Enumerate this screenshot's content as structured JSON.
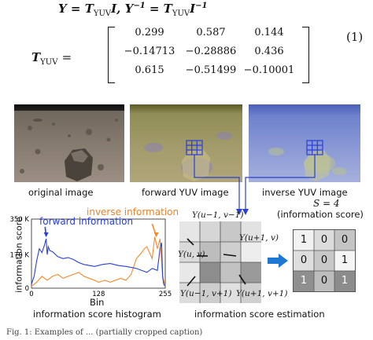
{
  "equation": {
    "line1": "Y = T",
    "line1_sub": "YUV",
    "line1_mid": "I, Y",
    "line1_sup": "−1",
    "line1_rest": " = T",
    "line1_sub2": "YUV",
    "line1_end": "I",
    "line1_sup2": "−1",
    "matrix_label": "T",
    "matrix_label_sub": "YUV",
    "equals": "=",
    "number": "(1)",
    "matrix": [
      [
        "0.299",
        "0.587",
        "0.144"
      ],
      [
        "−0.14713",
        "−0.28886",
        "0.436"
      ],
      [
        "0.615",
        "−0.51499",
        "−0.10001"
      ]
    ]
  },
  "images": {
    "original": "original image",
    "forward": "forward YUV image",
    "inverse": "inverse YUV image"
  },
  "histogram": {
    "inverse_label": "inverse information",
    "forward_label": "forward information",
    "ylabel": "information score",
    "xlabel": "Bin",
    "caption": "information score histogram",
    "colors": {
      "forward": "#2a3fd4",
      "inverse": "#f28a2e"
    }
  },
  "chart_data": {
    "type": "line",
    "title": "",
    "xlabel": "Bin",
    "ylabel": "information score",
    "xlim": [
      0,
      255
    ],
    "ylim": [
      0,
      350
    ],
    "xticks": [
      "0",
      "128",
      "255"
    ],
    "yticks": [
      "0",
      "170 K",
      "350 K"
    ],
    "grid": false,
    "series": [
      {
        "name": "forward information",
        "color": "#2a3fd4",
        "x": [
          0,
          5,
          10,
          15,
          20,
          25,
          28,
          30,
          32,
          35,
          40,
          50,
          60,
          70,
          80,
          90,
          100,
          110,
          120,
          128,
          135,
          150,
          165,
          180,
          190,
          200,
          210,
          220,
          230,
          240,
          245,
          248,
          250,
          252,
          255
        ],
        "y": [
          20,
          60,
          140,
          200,
          180,
          220,
          250,
          170,
          210,
          190,
          185,
          160,
          150,
          155,
          145,
          130,
          120,
          115,
          110,
          115,
          120,
          125,
          115,
          110,
          105,
          100,
          90,
          80,
          100,
          90,
          200,
          230,
          60,
          20,
          10
        ]
      },
      {
        "name": "inverse information",
        "color": "#f28a2e",
        "x": [
          0,
          10,
          20,
          30,
          40,
          50,
          60,
          70,
          80,
          90,
          100,
          110,
          120,
          128,
          140,
          150,
          160,
          170,
          180,
          190,
          200,
          210,
          215,
          220,
          225,
          230,
          235,
          240,
          245,
          250,
          255
        ],
        "y": [
          10,
          30,
          60,
          40,
          60,
          70,
          50,
          60,
          70,
          80,
          60,
          50,
          40,
          30,
          40,
          30,
          40,
          50,
          40,
          70,
          150,
          180,
          200,
          210,
          180,
          150,
          260,
          200,
          250,
          60,
          10
        ]
      }
    ]
  },
  "estimation": {
    "score_label": "S = 4",
    "score_caption": "(information score)",
    "caption": "information score estimation",
    "labels": {
      "tl": "Y(u−1, v−1)",
      "center": "Y(u, v)",
      "right": "Y(u+1, v)",
      "bl": "Y(u−1, v+1)",
      "br": "Y(u+1, v+1)"
    },
    "values": [
      [
        "1",
        "0",
        "0"
      ],
      [
        "0",
        "0",
        "1"
      ],
      [
        "1",
        "0",
        "1"
      ]
    ],
    "arrow_color": "#1e78d2"
  },
  "footer": "Fig. 1: Examples of ... (partially cropped caption)"
}
